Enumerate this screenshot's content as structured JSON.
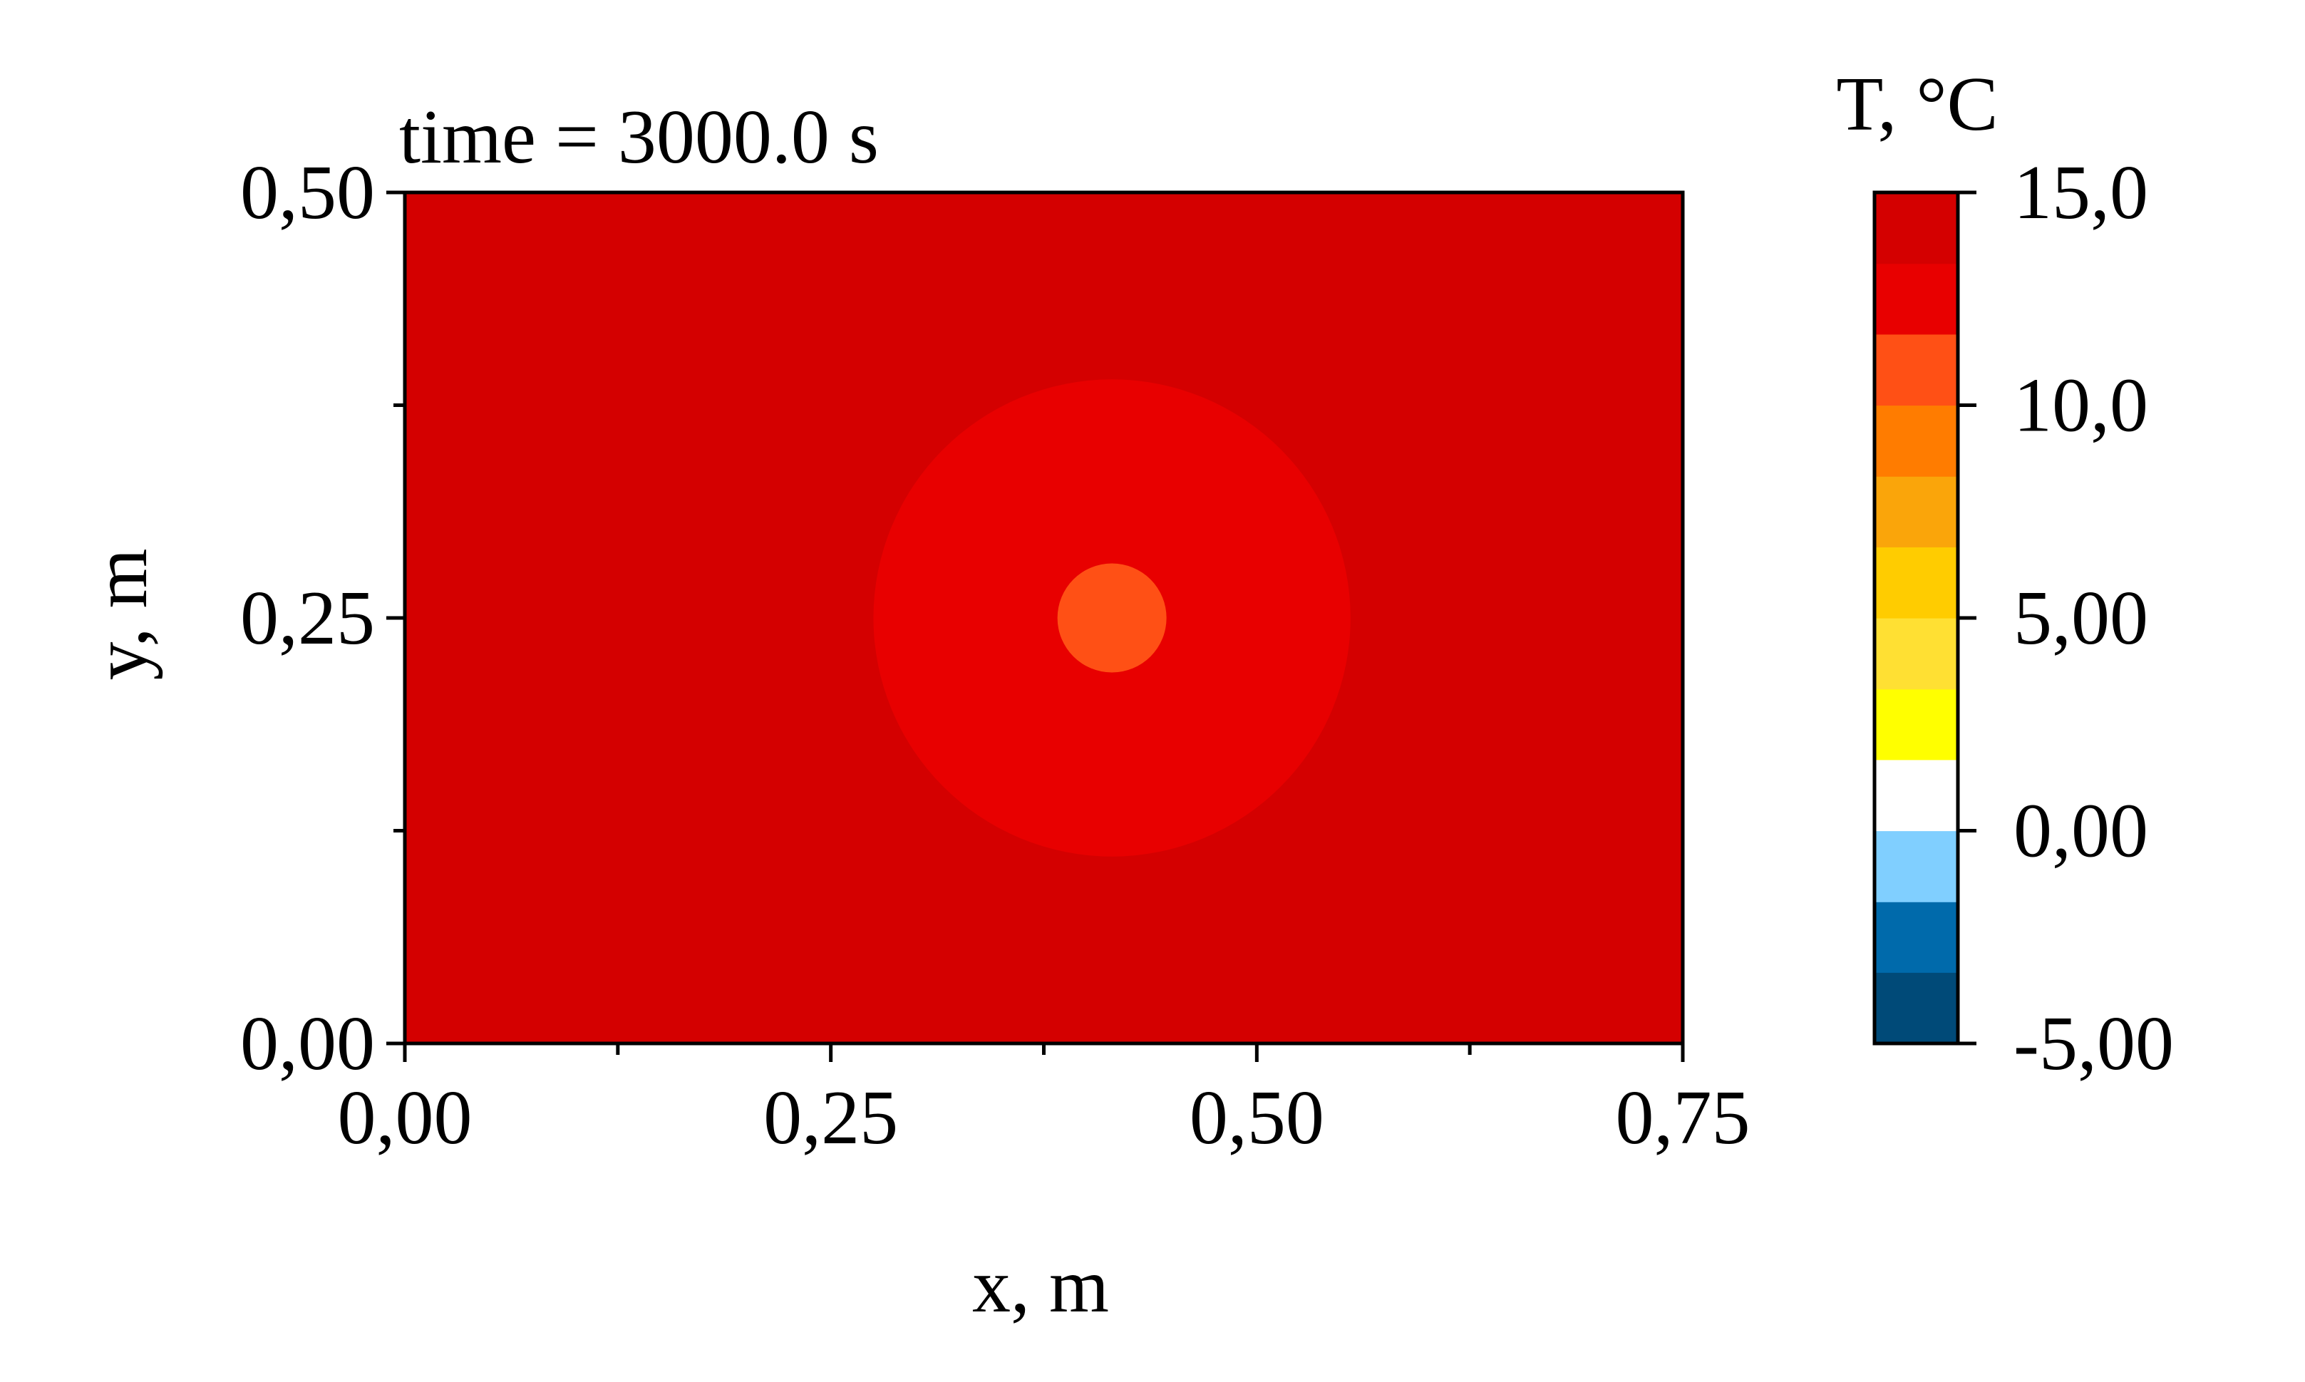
{
  "chart_data": {
    "type": "heatmap",
    "title": "time = 3000.0 s",
    "xlabel": "x, m",
    "ylabel": "y, m",
    "xlim": [
      0,
      0.75
    ],
    "ylim": [
      0,
      0.5
    ],
    "x_ticks": [
      {
        "value": 0.0,
        "label": "0,00"
      },
      {
        "value": 0.25,
        "label": "0,25"
      },
      {
        "value": 0.5,
        "label": "0,50"
      },
      {
        "value": 0.75,
        "label": "0,75"
      }
    ],
    "x_minor_ticks": [
      0.125,
      0.375,
      0.625
    ],
    "y_ticks": [
      {
        "value": 0.0,
        "label": "0,00"
      },
      {
        "value": 0.25,
        "label": "0,25"
      },
      {
        "value": 0.5,
        "label": "0,50"
      }
    ],
    "y_minor_ticks": [
      0.125,
      0.375
    ],
    "field": {
      "background": {
        "color": "#d40000",
        "level_range": [
          13.33,
          15.0
        ]
      },
      "regions": [
        {
          "shape": "circle",
          "center": [
            0.415,
            0.25
          ],
          "radius": 0.14,
          "color": "#e80000",
          "level_range": [
            11.67,
            13.33
          ]
        },
        {
          "shape": "circle",
          "center": [
            0.415,
            0.25
          ],
          "radius": 0.032,
          "color": "#ff5015",
          "level_range": [
            10.0,
            11.67
          ]
        }
      ]
    },
    "colorbar": {
      "title": "T, °C",
      "range": [
        -5.0,
        15.0
      ],
      "levels": [
        -5.0,
        -3.33,
        -1.67,
        0.0,
        1.67,
        3.33,
        5.0,
        6.67,
        8.33,
        10.0,
        11.67,
        13.33,
        15.0
      ],
      "colors": [
        "#004a78",
        "#006aab",
        "#80cfff",
        "#ffffff",
        "#ffff00",
        "#ffe033",
        "#ffcc00",
        "#faa50a",
        "#ff7c00",
        "#ff5015",
        "#e80000",
        "#d40000"
      ],
      "ticks": [
        {
          "value": 15.0,
          "label": "15,0"
        },
        {
          "value": 10.0,
          "label": "10,0"
        },
        {
          "value": 5.0,
          "label": "5,00"
        },
        {
          "value": 0.0,
          "label": "0,00"
        },
        {
          "value": -5.0,
          "label": "-5,00"
        }
      ]
    }
  }
}
